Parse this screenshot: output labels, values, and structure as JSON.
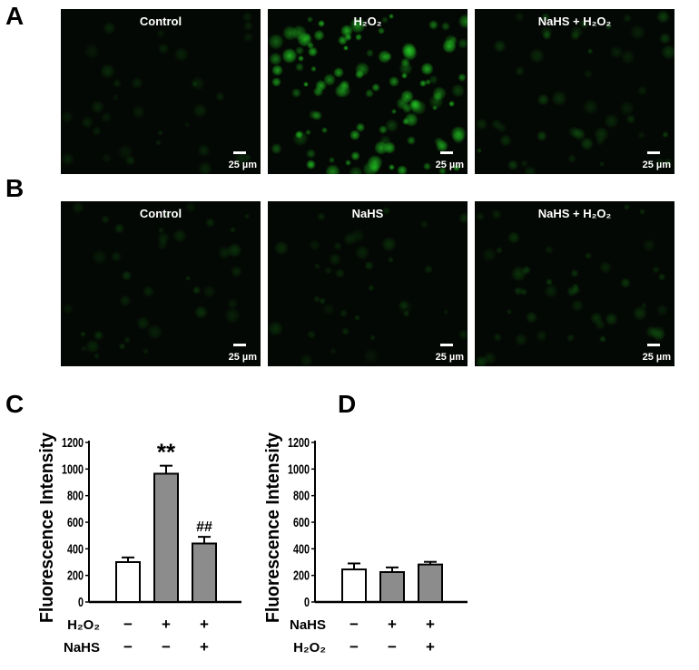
{
  "panels": {
    "A": "A",
    "B": "B",
    "C": "C",
    "D": "D"
  },
  "rowA": [
    {
      "caption": "Control",
      "scale": "25 µm",
      "intensity": 0.15
    },
    {
      "caption": "H₂O₂",
      "scale": "25 µm",
      "intensity": 1.0
    },
    {
      "caption": "NaHS + H₂O₂",
      "scale": "25 µm",
      "intensity": 0.3
    }
  ],
  "rowB": [
    {
      "caption": "Control",
      "scale": "25 µm",
      "intensity": 0.2
    },
    {
      "caption": "NaHS",
      "scale": "25 µm",
      "intensity": 0.18
    },
    {
      "caption": "NaHS + H₂O₂",
      "scale": "25 µm",
      "intensity": 0.25
    }
  ],
  "colors": {
    "fluorescence": "#22cc22",
    "bar_control": "#ffffff",
    "bar_treated": "#8c8c8c"
  },
  "chart_data": [
    {
      "type": "bar",
      "panel": "C",
      "ylabel": "Fluorescence Intensity",
      "ylim": [
        0,
        1200
      ],
      "yticks": [
        "0",
        "200",
        "400",
        "600",
        "800",
        "1000",
        "1200"
      ],
      "values": [
        300,
        965,
        440
      ],
      "errors": [
        35,
        60,
        50
      ],
      "annotations": [
        "",
        "**",
        "##"
      ],
      "conditions": [
        {
          "label": "H₂O₂",
          "signs": [
            "−",
            "+",
            "+"
          ]
        },
        {
          "label": "NaHS",
          "signs": [
            "−",
            "−",
            "+"
          ]
        }
      ]
    },
    {
      "type": "bar",
      "panel": "D",
      "ylabel": "Fluorescence Intensity",
      "ylim": [
        0,
        1200
      ],
      "yticks": [
        "0",
        "200",
        "400",
        "600",
        "800",
        "1000",
        "1200"
      ],
      "values": [
        245,
        225,
        282
      ],
      "errors": [
        45,
        35,
        20
      ],
      "annotations": [
        "",
        "",
        ""
      ],
      "conditions": [
        {
          "label": "NaHS",
          "signs": [
            "−",
            "+",
            "+"
          ]
        },
        {
          "label": "H₂O₂",
          "signs": [
            "−",
            "−",
            "+"
          ]
        }
      ]
    }
  ]
}
